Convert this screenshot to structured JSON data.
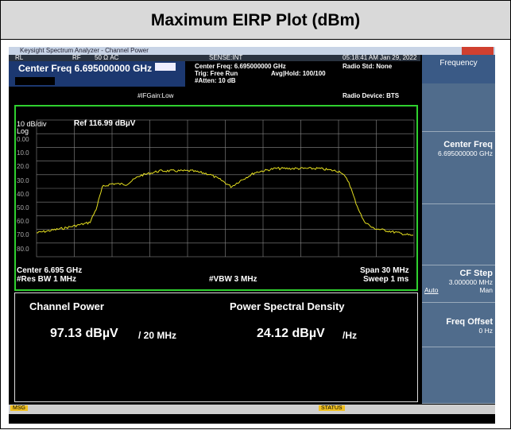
{
  "title": "Maximum EIRP Plot (dBm)",
  "window_title": "Keysight Spectrum Analyzer - Channel Power",
  "status_row": {
    "rl": "RL",
    "rf": "RF",
    "impedance": "50 Ω  AC",
    "sense": "SENSE:INT",
    "timestamp": "05:18:41 AM Jan 29, 2022"
  },
  "header": {
    "center_freq": "Center Freq 6.695000000 GHz",
    "if_gain": "#IFGain:Low",
    "center_freq_info": "Center Freq: 6.695000000 GHz",
    "trig": "Trig: Free Run",
    "avg_hold": "Avg|Hold: 100/100",
    "atten": "#Atten: 10 dB",
    "radio_std": "Radio Std: None",
    "radio_device": "Radio Device: BTS"
  },
  "plot": {
    "scale": "10 dB/div",
    "ref": "Ref 116.99 dBµV",
    "log": "Log",
    "y_labels": [
      "0.00",
      "10.0",
      "20.0",
      "30.0",
      "40.0",
      "50.0",
      "60.0",
      "70.0",
      "80.0"
    ],
    "center": "Center  6.695 GHz",
    "span": "Span 30 MHz",
    "res_bw": "#Res BW  1 MHz",
    "vbw": "#VBW  3 MHz",
    "sweep": "Sweep  1 ms"
  },
  "results": {
    "channel_power_label": "Channel Power",
    "channel_power": "97.13 dBµV",
    "channel_power_unit": "/ 20 MHz",
    "psd_label": "Power Spectral Density",
    "psd": "24.12 dBµV",
    "psd_unit": "/Hz"
  },
  "softkeys": {
    "menu": "Frequency",
    "center_freq": "Center Freq",
    "center_freq_value": "6.695000000 GHz",
    "cf_step": "CF Step",
    "cf_step_value": "3.000000 MHz",
    "auto": "Auto",
    "man": "Man",
    "freq_offset": "Freq Offset",
    "freq_offset_value": "0 Hz"
  },
  "status_bar": {
    "msg": "MSG",
    "status": "STATUS"
  }
}
